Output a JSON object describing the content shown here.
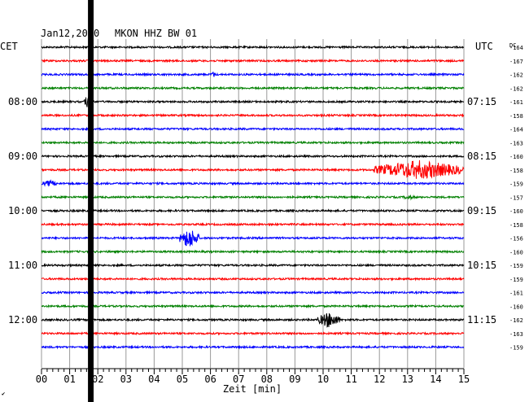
{
  "header": {
    "date": "Jan12,2020",
    "station": "MKON HHZ BW 01",
    "left_tz": "CET",
    "right_tz": "UTC",
    "dc_label": "DC"
  },
  "chart_data": {
    "type": "line",
    "title": "Jan12,2020   MKON HHZ BW 01",
    "xlabel": "Zeit [min]",
    "xlim": [
      0,
      15
    ],
    "x_ticks": [
      "00",
      "01",
      "02",
      "03",
      "04",
      "05",
      "06",
      "07",
      "08",
      "09",
      "10",
      "11",
      "12",
      "13",
      "14",
      "15"
    ],
    "grid": true,
    "trace_colors": [
      "#000000",
      "#ff0000",
      "#0000ff",
      "#008000"
    ],
    "left_time_labels": [
      {
        "trace": 4,
        "text": "08:00"
      },
      {
        "trace": 8,
        "text": "09:00"
      },
      {
        "trace": 12,
        "text": "10:00"
      },
      {
        "trace": 16,
        "text": "11:00"
      },
      {
        "trace": 20,
        "text": "12:00"
      }
    ],
    "right_time_labels": [
      {
        "trace": 4,
        "text": "07:15"
      },
      {
        "trace": 8,
        "text": "08:15"
      },
      {
        "trace": 12,
        "text": "09:15"
      },
      {
        "trace": 16,
        "text": "10:15"
      },
      {
        "trace": 20,
        "text": "11:15"
      }
    ],
    "dc_offsets": [
      "-164",
      "-167",
      "-162",
      "-162",
      "-161",
      "-158",
      "-164",
      "-163",
      "-160",
      "-158",
      "-159",
      "-157",
      "-160",
      "-158",
      "-156",
      "-160",
      "-159",
      "-159",
      "-161",
      "-160",
      "-162",
      "-163",
      "-159"
    ],
    "events": [
      {
        "trace": 2,
        "start": 6.0,
        "end": 6.2,
        "amplitude": 4
      },
      {
        "trace": 4,
        "start": 1.5,
        "end": 1.9,
        "amplitude": 9
      },
      {
        "trace": 9,
        "start": 11.8,
        "end": 15.0,
        "amplitude": 12
      },
      {
        "trace": 10,
        "start": 0.0,
        "end": 0.6,
        "amplitude": 4
      },
      {
        "trace": 11,
        "start": 12.8,
        "end": 13.3,
        "amplitude": 3
      },
      {
        "trace": 14,
        "start": 4.9,
        "end": 5.6,
        "amplitude": 13
      },
      {
        "trace": 20,
        "start": 9.8,
        "end": 10.6,
        "amplitude": 10
      }
    ],
    "gap": {
      "start": 1.65,
      "end": 1.85
    }
  },
  "footer": {
    "corner": "✔"
  }
}
